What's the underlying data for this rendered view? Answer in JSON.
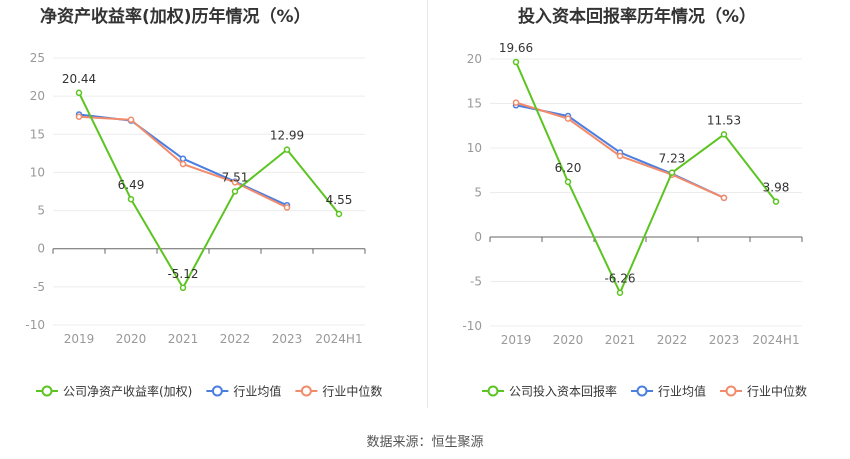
{
  "footer": {
    "source": "数据来源：恒生聚源"
  },
  "chart_data": [
    {
      "type": "line",
      "title": "净资产收益率(加权)历年情况（%）",
      "categories": [
        "2019",
        "2020",
        "2021",
        "2022",
        "2023",
        "2024H1"
      ],
      "ylim": [
        -10,
        25
      ],
      "yticks": [
        25,
        20,
        15,
        10,
        5,
        0,
        -5,
        -10
      ],
      "grid": true,
      "legend_position": "bottom-left",
      "series": [
        {
          "name": "公司净资产收益率(加权)",
          "color": "#5cc421",
          "values": [
            20.44,
            6.49,
            -5.12,
            7.51,
            12.99,
            4.55
          ],
          "labels": [
            "20.44",
            "6.49",
            "-5.12",
            "7.51",
            "12.99",
            "4.55"
          ]
        },
        {
          "name": "行业均值",
          "color": "#4a7ee0",
          "values": [
            17.6,
            16.8,
            11.8,
            8.8,
            5.7,
            null
          ]
        },
        {
          "name": "行业中位数",
          "color": "#f28b6c",
          "values": [
            17.3,
            16.9,
            11.1,
            8.7,
            5.4,
            null
          ]
        }
      ]
    },
    {
      "type": "line",
      "title": "投入资本回报率历年情况（%）",
      "categories": [
        "2019",
        "2020",
        "2021",
        "2022",
        "2023",
        "2024H1"
      ],
      "ylim": [
        -10,
        20
      ],
      "yticks": [
        20,
        15,
        10,
        5,
        0,
        -5,
        -10
      ],
      "grid": true,
      "legend_position": "bottom-left",
      "series": [
        {
          "name": "公司投入资本回报率",
          "color": "#5cc421",
          "values": [
            19.66,
            6.2,
            -6.26,
            7.23,
            11.53,
            3.98
          ],
          "labels": [
            "19.66",
            "6.20",
            "-6.26",
            "7.23",
            "11.53",
            "3.98"
          ]
        },
        {
          "name": "行业均值",
          "color": "#4a7ee0",
          "values": [
            14.8,
            13.6,
            9.5,
            7.1,
            4.4,
            null
          ]
        },
        {
          "name": "行业中位数",
          "color": "#f28b6c",
          "values": [
            15.1,
            13.3,
            9.1,
            7.0,
            4.4,
            null
          ]
        }
      ]
    }
  ]
}
